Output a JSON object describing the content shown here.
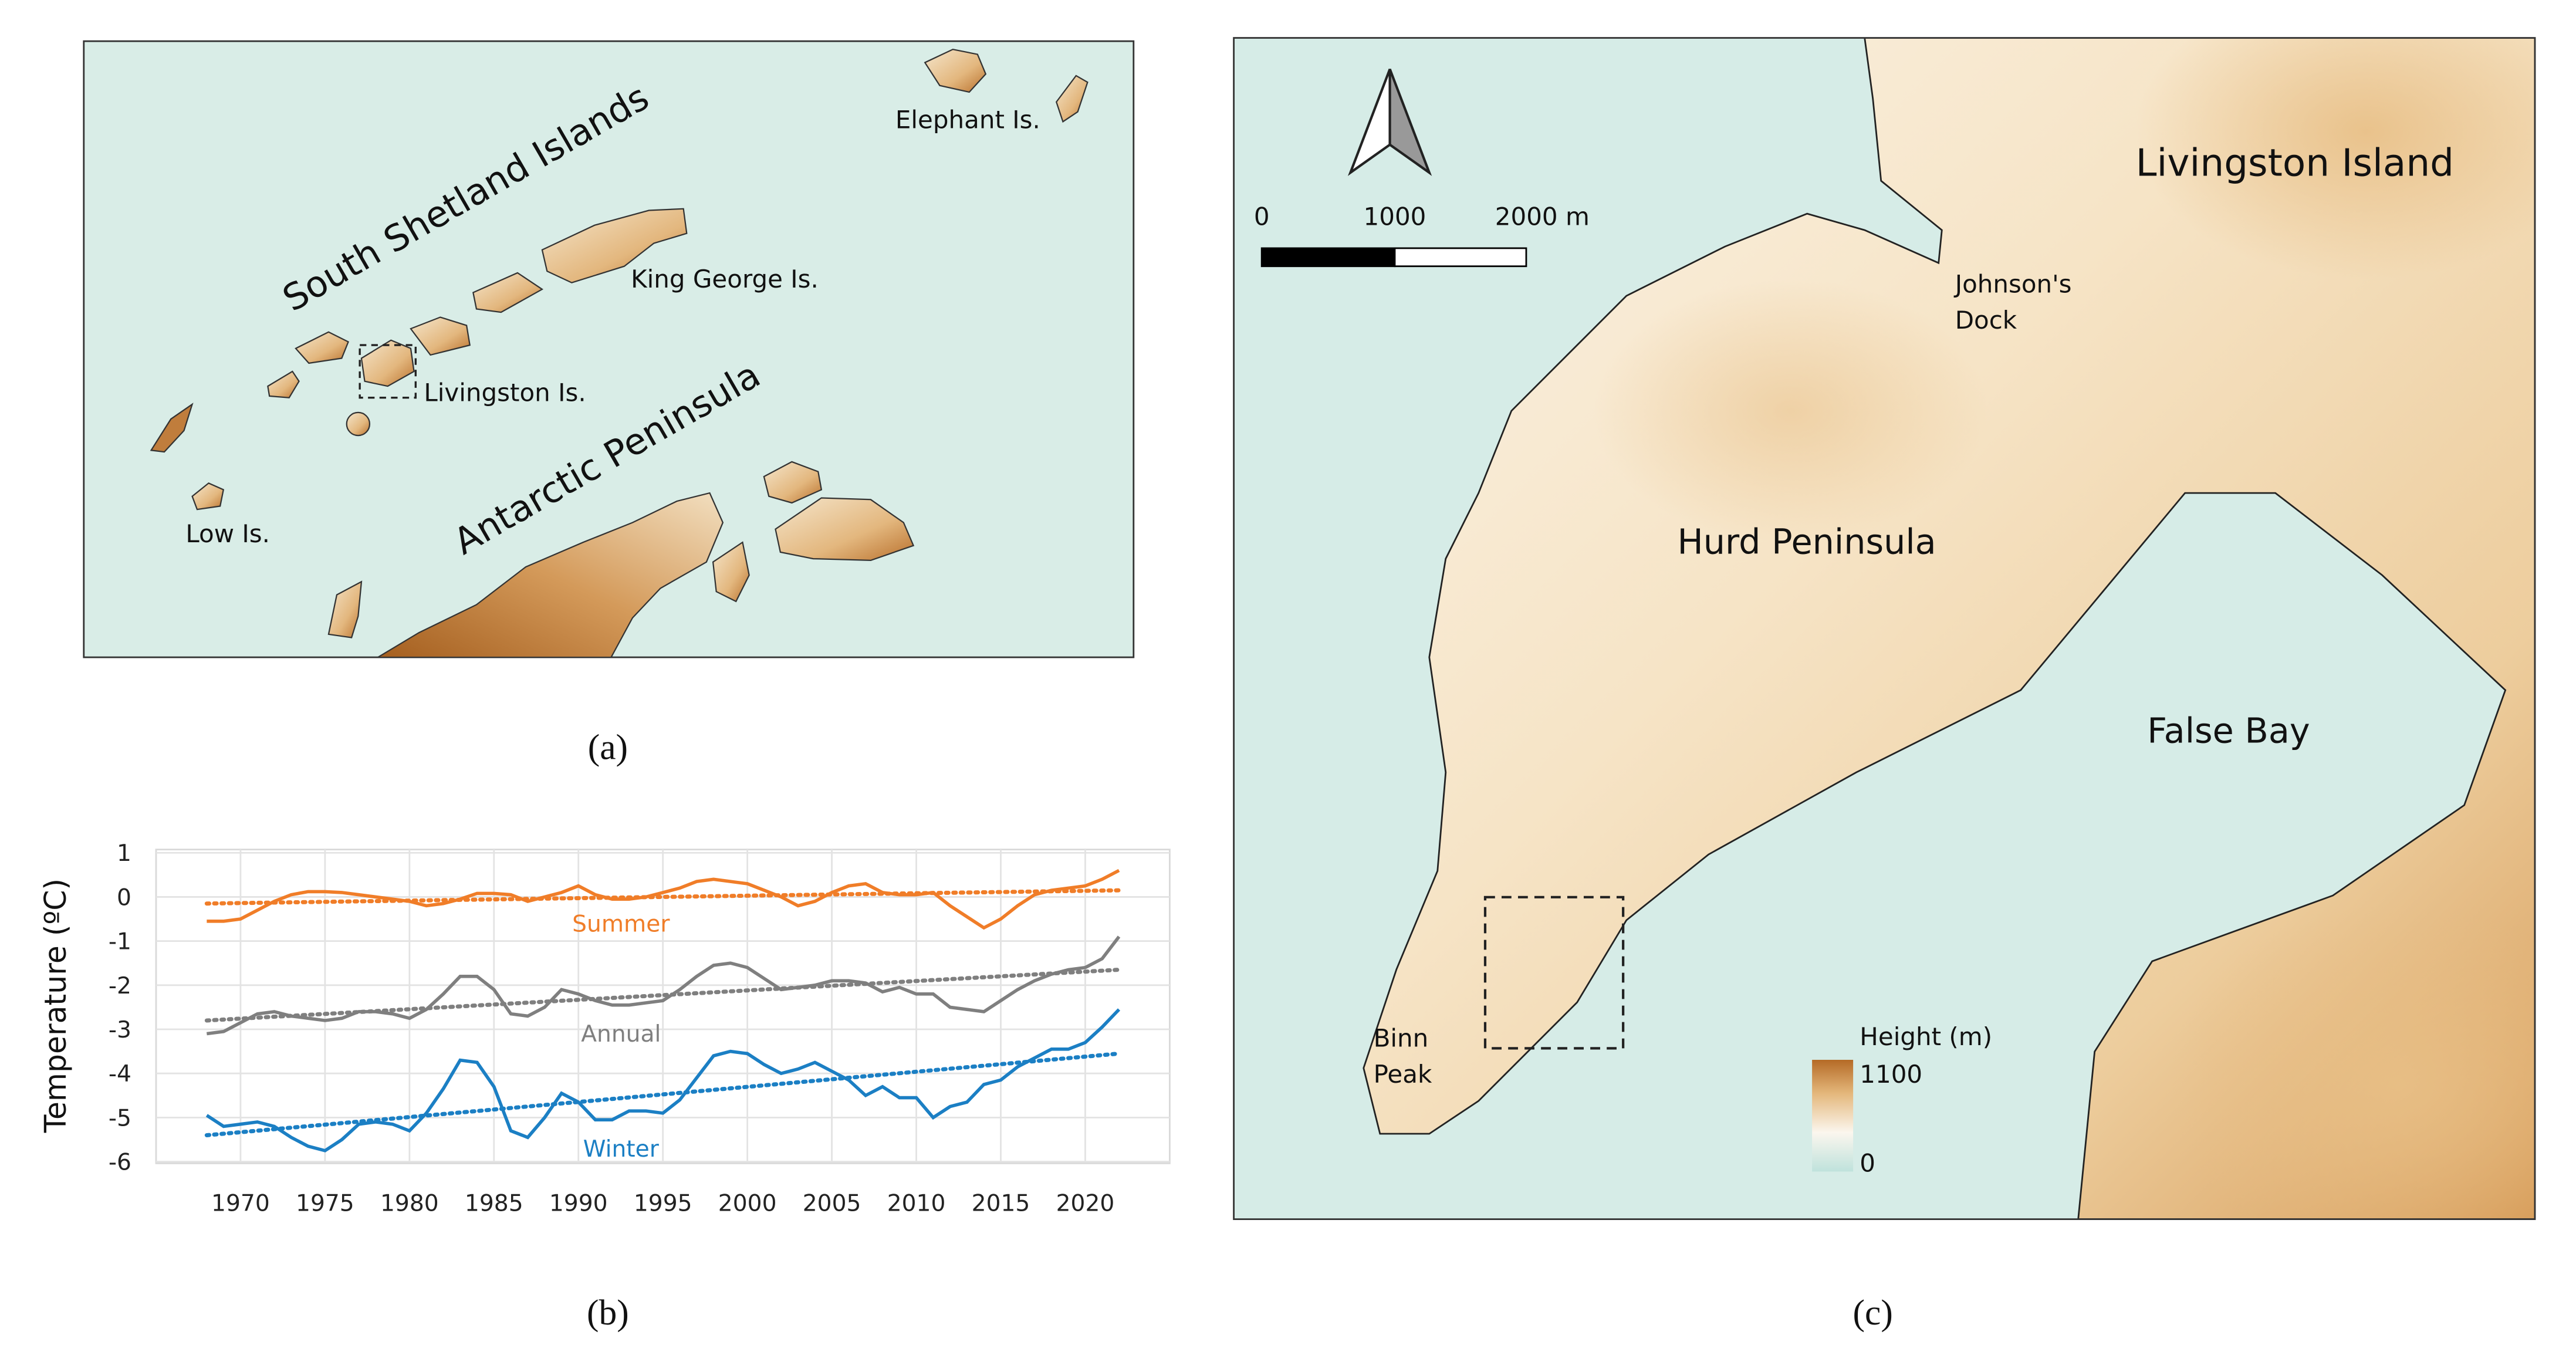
{
  "panel_a": {
    "caption": "(a)",
    "labels": [
      "South Shetland Islands",
      "Elephant Is.",
      "King George Is.",
      "Livingston Is.",
      "Antarctic Peninsula",
      "Low Is."
    ]
  },
  "panel_c": {
    "caption": "(c)",
    "labels": [
      "Livingston Island",
      "Hurd Peninsula",
      "False Bay"
    ],
    "johnsons_dock": [
      "Johnson's",
      "Dock"
    ],
    "binn_peak": [
      "Binn",
      "Peak"
    ],
    "scale_bar": [
      "0",
      "1000",
      "2000 m"
    ],
    "height_legend": {
      "title": "Height (m)",
      "max": "1100",
      "min": "0"
    }
  },
  "chart_data": {
    "type": "line",
    "caption": "(b)",
    "y_label": "Temperature (ºC)",
    "x": [
      1968,
      1969,
      1970,
      1971,
      1972,
      1973,
      1974,
      1975,
      1976,
      1977,
      1978,
      1979,
      1980,
      1981,
      1982,
      1983,
      1984,
      1985,
      1986,
      1987,
      1988,
      1989,
      1990,
      1991,
      1992,
      1993,
      1994,
      1995,
      1996,
      1997,
      1998,
      1999,
      2000,
      2001,
      2002,
      2003,
      2004,
      2005,
      2006,
      2007,
      2008,
      2009,
      2010,
      2011,
      2012,
      2013,
      2014,
      2015,
      2016,
      2017,
      2018,
      2019,
      2020,
      2021,
      2022
    ],
    "series": [
      {
        "name": "Summer",
        "color": "#f07d28",
        "trend": [
          -0.15,
          0.15
        ],
        "values": [
          -0.55,
          -0.55,
          -0.5,
          -0.3,
          -0.1,
          0.05,
          0.12,
          0.12,
          0.1,
          0.05,
          0,
          -0.05,
          -0.1,
          -0.2,
          -0.15,
          -0.05,
          0.08,
          0.08,
          0.05,
          -0.1,
          0,
          0.1,
          0.25,
          0.05,
          -0.05,
          -0.05,
          0,
          0.1,
          0.2,
          0.35,
          0.4,
          0.35,
          0.3,
          0.15,
          0,
          -0.2,
          -0.1,
          0.1,
          0.25,
          0.3,
          0.1,
          0.05,
          0.05,
          0.1,
          -0.2,
          -0.45,
          -0.7,
          -0.5,
          -0.2,
          0.05,
          0.15,
          0.2,
          0.25,
          0.4,
          0.6
        ]
      },
      {
        "name": "Annual",
        "color": "#7f7f7f",
        "trend": [
          -2.8,
          -1.65
        ],
        "values": [
          -3.1,
          -3.05,
          -2.85,
          -2.65,
          -2.6,
          -2.7,
          -2.75,
          -2.8,
          -2.75,
          -2.6,
          -2.6,
          -2.65,
          -2.75,
          -2.55,
          -2.2,
          -1.8,
          -1.8,
          -2.1,
          -2.65,
          -2.7,
          -2.5,
          -2.1,
          -2.2,
          -2.35,
          -2.45,
          -2.45,
          -2.4,
          -2.35,
          -2.1,
          -1.8,
          -1.55,
          -1.5,
          -1.6,
          -1.85,
          -2.1,
          -2.05,
          -2,
          -1.9,
          -1.9,
          -1.95,
          -2.15,
          -2.05,
          -2.2,
          -2.2,
          -2.5,
          -2.55,
          -2.6,
          -2.35,
          -2.1,
          -1.9,
          -1.75,
          -1.65,
          -1.6,
          -1.4,
          -0.9
        ]
      },
      {
        "name": "Winter",
        "color": "#1b7fc4",
        "trend": [
          -5.4,
          -3.55
        ],
        "values": [
          -4.95,
          -5.2,
          -5.15,
          -5.1,
          -5.2,
          -5.45,
          -5.65,
          -5.75,
          -5.5,
          -5.15,
          -5.1,
          -5.15,
          -5.3,
          -4.9,
          -4.35,
          -3.7,
          -3.75,
          -4.3,
          -5.3,
          -5.45,
          -5,
          -4.45,
          -4.65,
          -5.05,
          -5.05,
          -4.85,
          -4.85,
          -4.9,
          -4.6,
          -4.1,
          -3.6,
          -3.5,
          -3.55,
          -3.8,
          -4,
          -3.9,
          -3.75,
          -3.95,
          -4.15,
          -4.5,
          -4.3,
          -4.55,
          -4.55,
          -5,
          -4.75,
          -4.65,
          -4.25,
          -4.15,
          -3.85,
          -3.65,
          -3.45,
          -3.45,
          -3.3,
          -2.95,
          -2.55
        ]
      }
    ],
    "xlim": [
      1965,
      2025
    ],
    "ylim": [
      -6,
      1
    ],
    "xticks": [
      1970,
      1975,
      1980,
      1985,
      1990,
      1995,
      2000,
      2005,
      2010,
      2015,
      2020
    ],
    "yticks": [
      -6,
      -5,
      -4,
      -3,
      -2,
      -1,
      0,
      1
    ],
    "grid": true
  }
}
